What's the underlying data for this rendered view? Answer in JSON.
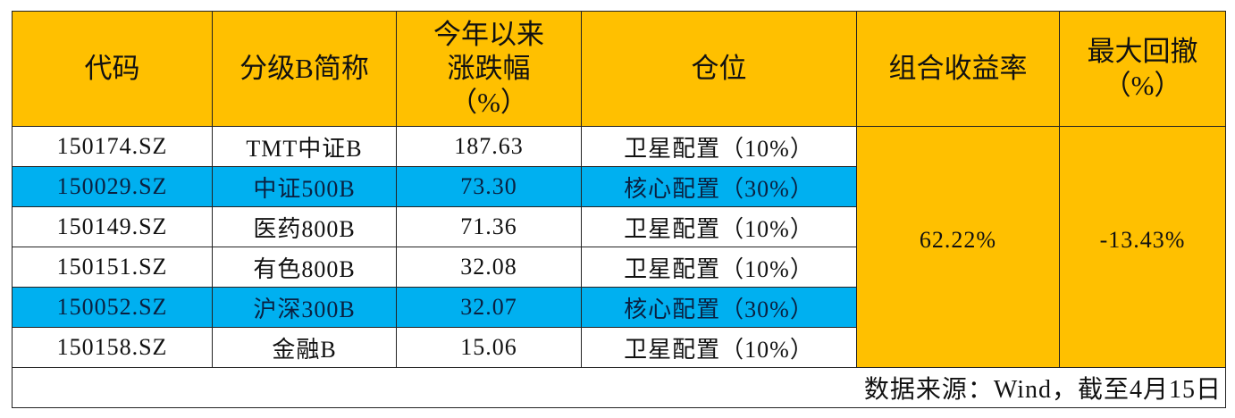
{
  "colors": {
    "header": "#FFC000",
    "highlight": "#00B0F0"
  },
  "headers": [
    "代码",
    "分级B简称",
    "今年以来涨跌幅（%）",
    "仓位",
    "组合收益率",
    "最大回撤（%）"
  ],
  "header_lines": {
    "col3": [
      "今年以来",
      "涨跌幅",
      "（%）"
    ],
    "col6": [
      "最大回撤",
      "（%）"
    ]
  },
  "rows": [
    {
      "code": "150174.SZ",
      "name": "TMT中证B",
      "change": "187.63",
      "position": "卫星配置（10%）",
      "highlight": false
    },
    {
      "code": "150029.SZ",
      "name": "中证500B",
      "change": "73.30",
      "position": "核心配置（30%）",
      "highlight": true
    },
    {
      "code": "150149.SZ",
      "name": "医药800B",
      "change": "71.36",
      "position": "卫星配置（10%）",
      "highlight": false
    },
    {
      "code": "150151.SZ",
      "name": "有色800B",
      "change": "32.08",
      "position": "卫星配置（10%）",
      "highlight": false
    },
    {
      "code": "150052.SZ",
      "name": "沪深300B",
      "change": "32.07",
      "position": "核心配置（30%）",
      "highlight": true
    },
    {
      "code": "150158.SZ",
      "name": "金融B",
      "change": "15.06",
      "position": "卫星配置（10%）",
      "highlight": false
    }
  ],
  "portfolio_return": "62.22%",
  "max_drawdown": "-13.43%",
  "footer": "数据来源：Wind，截至4月15日"
}
